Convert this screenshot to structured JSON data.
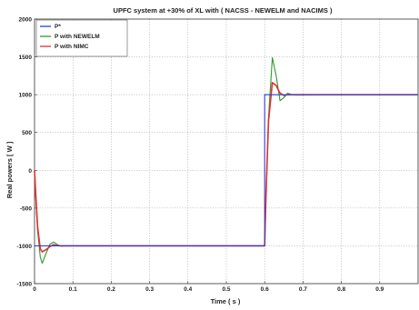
{
  "chart_data": {
    "type": "line",
    "title": "UPFC system at +30% of XL with ( NACSS - NEWELM and NACIMS )",
    "xlabel": "Time ( s )",
    "ylabel": "Real powers [ W ]",
    "xlim": [
      0,
      1.0
    ],
    "ylim": [
      -1500,
      2000
    ],
    "grid": true,
    "legend_position": "top-left",
    "x_ticks": [
      "0",
      "0.1",
      "0.2",
      "0.3",
      "0.4",
      "0.5",
      "0.6",
      "0.7",
      "0.8",
      "0.9"
    ],
    "y_ticks": [
      "-1500",
      "-1000",
      "-500",
      "0",
      "500",
      "1000",
      "1500",
      "2000"
    ],
    "x_tick_values": [
      0,
      0.1,
      0.2,
      0.3,
      0.4,
      0.5,
      0.6,
      0.7,
      0.8,
      0.9
    ],
    "y_tick_values": [
      -1500,
      -1000,
      -500,
      0,
      500,
      1000,
      1500,
      2000
    ],
    "series": [
      {
        "name": "P*",
        "color": "#2b3fd6",
        "x": [
          0,
          0.6,
          0.6,
          1.0
        ],
        "y": [
          -1000,
          -1000,
          1000,
          1000
        ]
      },
      {
        "name": "P with NEWELM",
        "color": "#2e9a2e",
        "x": [
          0,
          0.003,
          0.008,
          0.015,
          0.02,
          0.03,
          0.04,
          0.05,
          0.06,
          0.07,
          0.08,
          0.6,
          0.603,
          0.61,
          0.62,
          0.63,
          0.64,
          0.65,
          0.66,
          0.67,
          0.68,
          1.0
        ],
        "y": [
          0,
          -350,
          -800,
          -1150,
          -1230,
          -1100,
          -980,
          -950,
          -985,
          -1005,
          -1000,
          -1000,
          -450,
          700,
          1490,
          1250,
          920,
          960,
          1020,
          1000,
          995,
          1000
        ]
      },
      {
        "name": "P with NIMC",
        "color": "#e03030",
        "x": [
          0,
          0.003,
          0.008,
          0.015,
          0.02,
          0.03,
          0.04,
          0.05,
          0.06,
          0.07,
          0.6,
          0.603,
          0.61,
          0.62,
          0.63,
          0.64,
          0.65,
          0.66,
          1.0
        ],
        "y": [
          0,
          -300,
          -750,
          -1040,
          -1080,
          -1050,
          -1010,
          -985,
          -998,
          -1000,
          -1000,
          -400,
          650,
          1160,
          1120,
          1020,
          990,
          1000,
          1000
        ]
      }
    ]
  }
}
